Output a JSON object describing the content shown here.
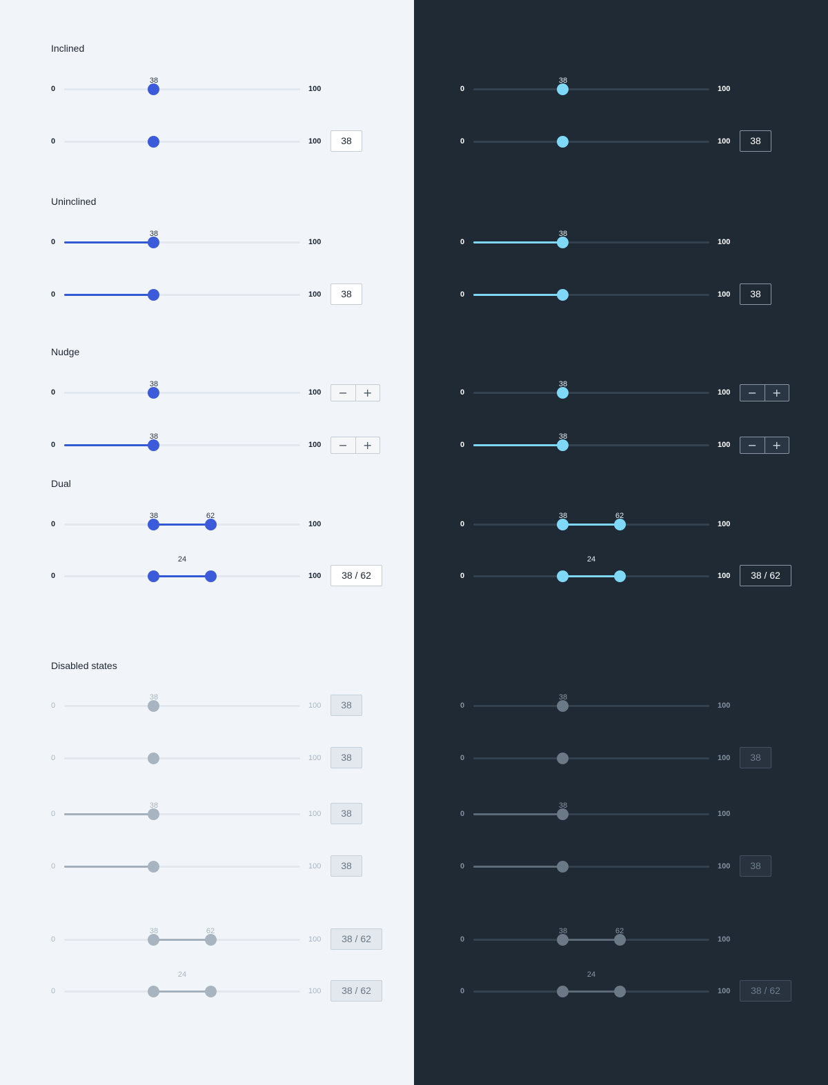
{
  "colors": {
    "light_background": "#f1f5f9",
    "dark_background": "#1f2a35",
    "light_accent": "#3b5bdb",
    "dark_accent": "#7fd8f6",
    "light_disabled": "#a8b5c0",
    "dark_disabled": "#6b7886"
  },
  "range": {
    "min": "0",
    "max": "100"
  },
  "sections": {
    "inclined": "Inclined",
    "uninclined": "Uninclined",
    "nudge": "Nudge",
    "dual": "Dual",
    "disabled": "Disabled states"
  },
  "icons": {
    "decrement": "minus-icon",
    "increment": "plus-icon"
  },
  "stepper": {
    "minus": "−",
    "plus": "+"
  },
  "rows": [
    {
      "value": 38,
      "show_label": "38"
    },
    {
      "value": 38,
      "box": "38"
    },
    {
      "value": 38,
      "show_label": "38"
    },
    {
      "value": 38,
      "box": "38"
    },
    {
      "value": 38,
      "show_label": "38"
    },
    {
      "value": 38,
      "show_label": "38"
    },
    {
      "low": 38,
      "high": 62,
      "low_label": "38",
      "high_label": "62"
    },
    {
      "low": 38,
      "high": 62,
      "span_label": "24",
      "box": "38 / 62"
    },
    {
      "value": 38,
      "show_label": "38",
      "box": "38"
    },
    {
      "value": 38,
      "box": "38"
    },
    {
      "value": 38,
      "show_label": "38",
      "box": "38"
    },
    {
      "value": 38,
      "box": "38"
    },
    {
      "low": 38,
      "high": 62,
      "low_label": "38",
      "high_label": "62",
      "box": "38 / 62"
    },
    {
      "low": 38,
      "high": 62,
      "span_label": "24",
      "box": "38 / 62"
    }
  ]
}
